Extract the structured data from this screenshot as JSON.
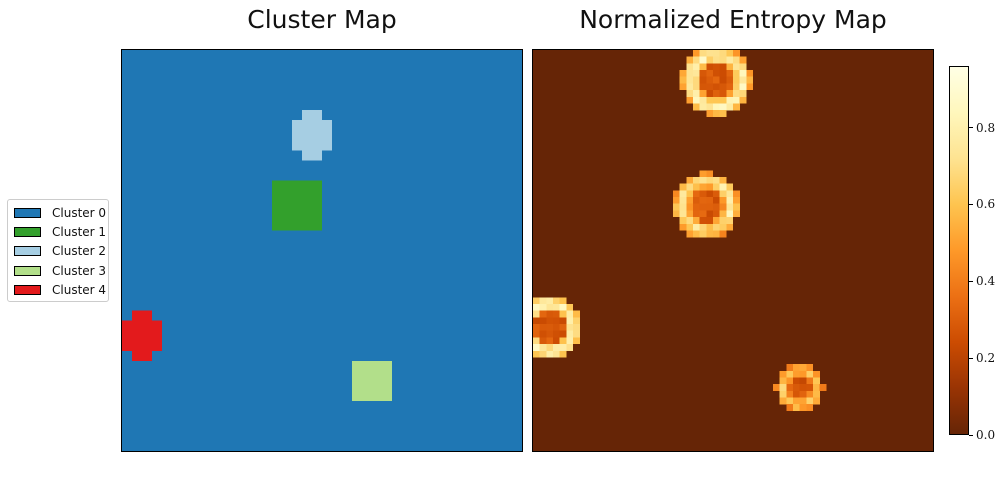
{
  "chart_data": [
    {
      "type": "heatmap",
      "title": "Cluster Map",
      "grid_size": [
        40,
        40
      ],
      "colors": {
        "0": "#1f77b4",
        "1": "#33a02c",
        "2": "#a6cee3",
        "3": "#b2df8a",
        "4": "#e31a1c"
      },
      "background_cluster": 0,
      "regions": [
        {
          "cluster": 2,
          "shape": "plus",
          "row_range": [
            6,
            10
          ],
          "col_range": [
            17,
            20
          ]
        },
        {
          "cluster": 1,
          "shape": "rect",
          "row_range": [
            13,
            17
          ],
          "col_range": [
            15,
            19
          ]
        },
        {
          "cluster": 4,
          "shape": "plus",
          "row_range": [
            26,
            30
          ],
          "col_range": [
            0,
            3
          ]
        },
        {
          "cluster": 3,
          "shape": "rect",
          "row_range": [
            31,
            34
          ],
          "col_range": [
            23,
            26
          ]
        }
      ],
      "legend": {
        "placement": "left",
        "entries": [
          {
            "label": "Cluster 0",
            "color": "#1f77b4"
          },
          {
            "label": "Cluster 1",
            "color": "#33a02c"
          },
          {
            "label": "Cluster 2",
            "color": "#a6cee3"
          },
          {
            "label": "Cluster 3",
            "color": "#b2df8a"
          },
          {
            "label": "Cluster 4",
            "color": "#e31a1c"
          }
        ]
      }
    },
    {
      "type": "heatmap",
      "title": "Normalized Entropy Map",
      "colormap": "YlOrBr_r",
      "vmin": 0.0,
      "vmax": 0.96,
      "background_value": 0.0,
      "grid_size": [
        60,
        60
      ],
      "rings": [
        {
          "center_row": 4.6,
          "center_col": 27.5,
          "inner_radius": 2.5,
          "outer_radius": 5.2,
          "peak": 0.96
        },
        {
          "center_row": 23.3,
          "center_col": 26.0,
          "inner_radius": 2.4,
          "outer_radius": 5.0,
          "peak": 0.85
        },
        {
          "center_row": 41.5,
          "center_col": 2.5,
          "inner_radius": 2.3,
          "outer_radius": 4.8,
          "peak": 0.95
        },
        {
          "center_row": 50.5,
          "center_col": 40.0,
          "inner_radius": 1.7,
          "outer_radius": 3.5,
          "peak": 0.72
        }
      ],
      "colorbar": {
        "ticks": [
          "0.0",
          "0.2",
          "0.4",
          "0.6",
          "0.8"
        ],
        "tick_values": [
          0.0,
          0.2,
          0.4,
          0.6,
          0.8
        ]
      }
    }
  ]
}
